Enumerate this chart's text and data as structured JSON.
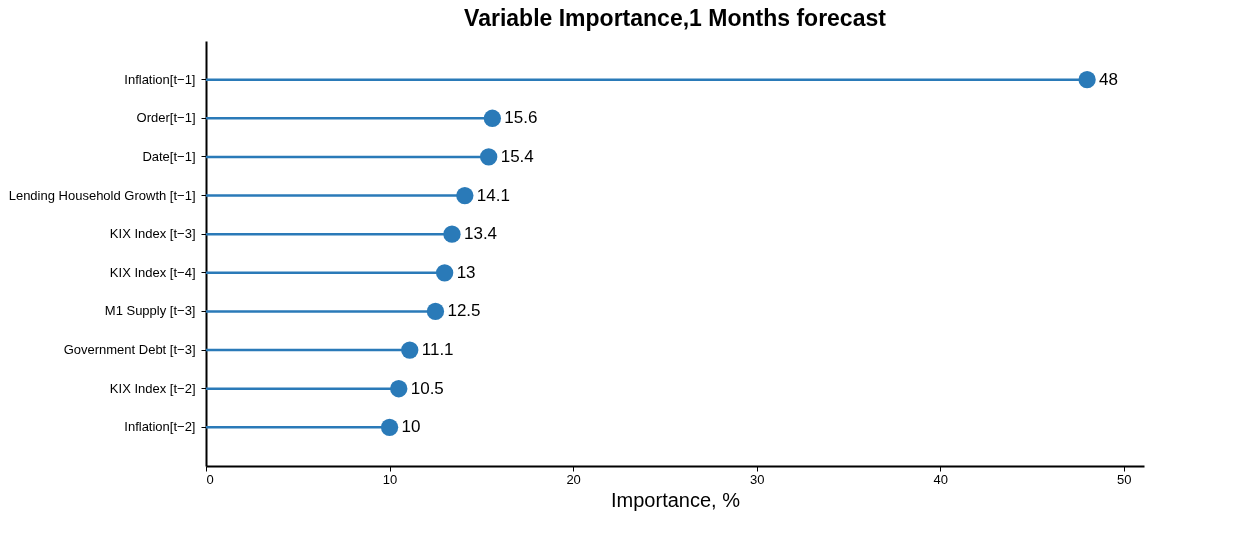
{
  "chart_data": {
    "type": "lollipop",
    "orientation": "horizontal",
    "title": "Variable Importance,1 Months forecast",
    "xlabel": "Importance, %",
    "categories": [
      "Inflation[t−1]",
      "Order[t−1]",
      "Date[t−1]",
      "Lending Household Growth [t−1]",
      "KIX Index [t−3]",
      "KIX Index [t−4]",
      "M1 Supply [t−3]",
      "Government Debt [t−3]",
      "KIX Index [t−2]",
      "Inflation[t−2]"
    ],
    "values": [
      48,
      15.6,
      15.4,
      14.1,
      13.4,
      13.0,
      12.5,
      11.1,
      10.5,
      10.0
    ],
    "value_labels": [
      "48",
      "15.6",
      "15.4",
      "14.1",
      "13.4",
      "13",
      "12.5",
      "11.1",
      "10.5",
      "10"
    ],
    "color": "#2a7ab8",
    "marker": "circle",
    "grid": false,
    "xlim": [
      0,
      51.1
    ],
    "xticks": [
      0,
      10,
      20,
      30,
      40,
      50
    ]
  }
}
